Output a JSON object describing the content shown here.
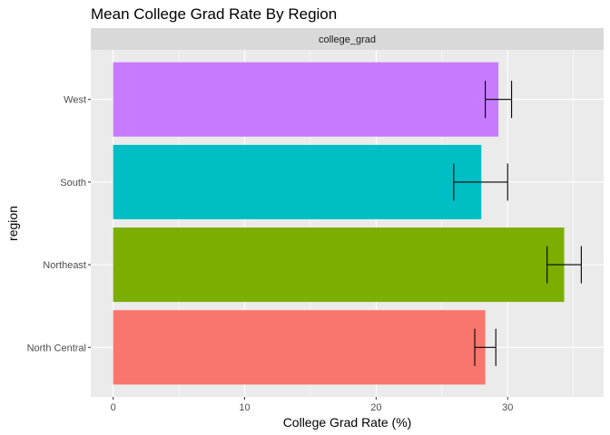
{
  "chart_data": {
    "type": "bar",
    "orientation": "horizontal",
    "title": "Mean College Grad Rate By Region",
    "facet_label": "college_grad",
    "xlabel": "College Grad Rate (%)",
    "ylabel": "region",
    "xlim": [
      -1.7,
      37.3
    ],
    "x_ticks": [
      0,
      10,
      20,
      30
    ],
    "categories": [
      "North Central",
      "Northeast",
      "South",
      "West"
    ],
    "values": [
      28.3,
      34.3,
      28.0,
      29.3
    ],
    "error_low": [
      27.5,
      33.0,
      25.9,
      28.3
    ],
    "error_high": [
      29.1,
      35.6,
      30.0,
      30.3
    ],
    "colors": [
      "#F8766D",
      "#7CAE00",
      "#00BFC4",
      "#C77CFF"
    ],
    "grid": true,
    "legend": "none"
  }
}
